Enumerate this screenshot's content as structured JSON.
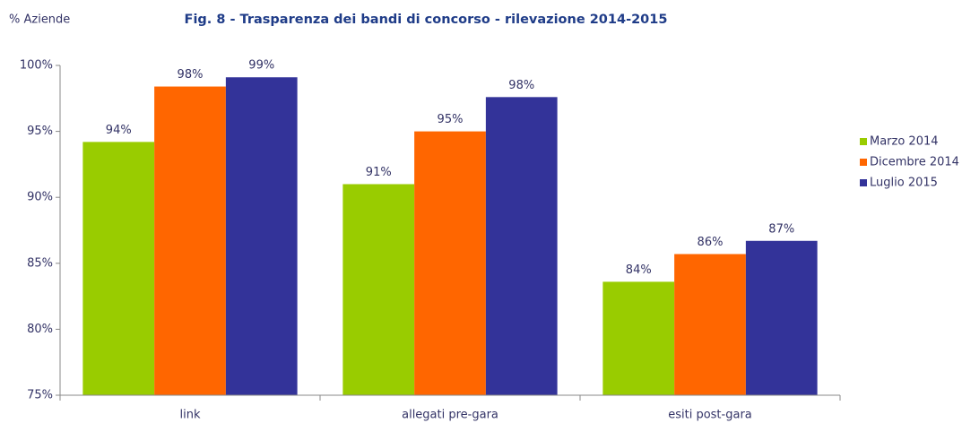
{
  "chart_data": {
    "type": "bar",
    "title": "Fig. 8 - Trasparenza dei bandi di concorso - rilevazione 2014-2015",
    "y_label": "% Aziende",
    "categories": [
      "link",
      "allegati pre-gara",
      "esiti post-gara"
    ],
    "series": [
      {
        "name": "Marzo 2014",
        "color": "#99cc00",
        "values": [
          94.2,
          91.0,
          83.6
        ],
        "value_labels": [
          "94%",
          "91%",
          "84%"
        ]
      },
      {
        "name": "Dicembre 2014",
        "color": "#ff6600",
        "values": [
          98.4,
          95.0,
          85.7
        ],
        "value_labels": [
          "98%",
          "95%",
          "86%"
        ]
      },
      {
        "name": "Luglio 2015",
        "color": "#333399",
        "values": [
          99.1,
          97.6,
          86.7
        ],
        "value_labels": [
          "99%",
          "98%",
          "87%"
        ]
      }
    ],
    "ylim": [
      75,
      100
    ],
    "yticks": [
      {
        "value": 75,
        "label": "75%"
      },
      {
        "value": 80,
        "label": "80%"
      },
      {
        "value": 85,
        "label": "85%"
      },
      {
        "value": 90,
        "label": "90%"
      },
      {
        "value": 95,
        "label": "95%"
      },
      {
        "value": 100,
        "label": "100%"
      }
    ],
    "legend": "right"
  }
}
